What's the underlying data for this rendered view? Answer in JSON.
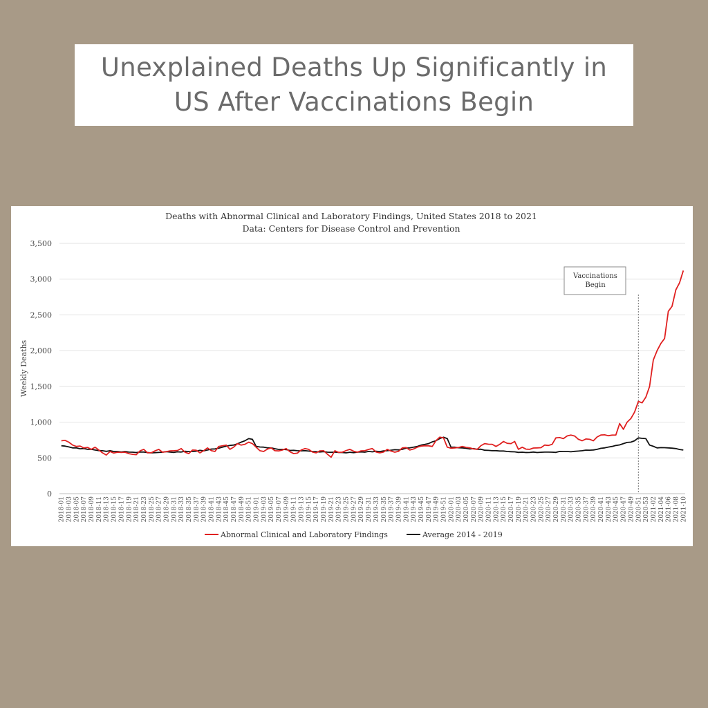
{
  "headline": "Unexplained Deaths Up Significantly in US After Vaccinations Begin",
  "chart_data": {
    "type": "line",
    "title": "Deaths with Abnormal Clinical and Laboratory Findings, United States 2018 to 2021",
    "subtitle": "Data: Centers for Disease Control and Prevention",
    "xlabel": "",
    "ylabel": "Weekly Deaths",
    "ylim": [
      0,
      3500
    ],
    "yticks": [
      0,
      500,
      1000,
      1500,
      2000,
      2500,
      3000,
      3500
    ],
    "ytick_labels": [
      "0",
      "500",
      "1,000",
      "1,500",
      "2,000",
      "2,500",
      "3,000",
      "3,500"
    ],
    "grid": true,
    "legend_position": "bottom",
    "colors": {
      "red": "#e02020",
      "black": "#111111",
      "grid": "#e3e3e3"
    },
    "annotation": {
      "text": [
        "Vaccinations",
        "Begin"
      ],
      "x_week": "2020-51"
    },
    "series": [
      {
        "name": "Abnormal Clinical and Laboratory Findings",
        "color": "#e02020",
        "anchors": [
          [
            "2018-01",
            740
          ],
          [
            "2018-02",
            745
          ],
          [
            "2018-03",
            720
          ],
          [
            "2018-04",
            680
          ],
          [
            "2018-05",
            660
          ],
          [
            "2018-07",
            640
          ],
          [
            "2018-09",
            620
          ],
          [
            "2018-10",
            650
          ],
          [
            "2018-11",
            610
          ],
          [
            "2018-12",
            570
          ],
          [
            "2018-13",
            540
          ],
          [
            "2018-14",
            590
          ],
          [
            "2018-16",
            580
          ],
          [
            "2018-18",
            580
          ],
          [
            "2018-19",
            560
          ],
          [
            "2018-20",
            550
          ],
          [
            "2018-21",
            545
          ],
          [
            "2018-23",
            620
          ],
          [
            "2018-24",
            570
          ],
          [
            "2018-27",
            620
          ],
          [
            "2018-28",
            580
          ],
          [
            "2018-31",
            600
          ],
          [
            "2018-33",
            630
          ],
          [
            "2018-35",
            560
          ],
          [
            "2018-36",
            610
          ],
          [
            "2018-38",
            570
          ],
          [
            "2018-40",
            640
          ],
          [
            "2018-42",
            590
          ],
          [
            "2018-43",
            660
          ],
          [
            "2018-45",
            680
          ],
          [
            "2018-46",
            620
          ],
          [
            "2018-48",
            700
          ],
          [
            "2018-50",
            690
          ],
          [
            "2018-51",
            720
          ],
          [
            "2018-52",
            700
          ],
          [
            "2019-01",
            650
          ],
          [
            "2019-02",
            600
          ],
          [
            "2019-03",
            590
          ],
          [
            "2019-05",
            640
          ],
          [
            "2019-06",
            600
          ],
          [
            "2019-08",
            610
          ],
          [
            "2019-09",
            630
          ],
          [
            "2019-11",
            560
          ],
          [
            "2019-13",
            610
          ],
          [
            "2019-15",
            620
          ],
          [
            "2019-17",
            570
          ],
          [
            "2019-19",
            600
          ],
          [
            "2019-21",
            510
          ],
          [
            "2019-22",
            600
          ],
          [
            "2019-24",
            580
          ],
          [
            "2019-26",
            620
          ],
          [
            "2019-28",
            580
          ],
          [
            "2019-30",
            600
          ],
          [
            "2019-32",
            630
          ],
          [
            "2019-34",
            570
          ],
          [
            "2019-36",
            620
          ],
          [
            "2019-38",
            580
          ],
          [
            "2019-40",
            640
          ],
          [
            "2019-42",
            610
          ],
          [
            "2019-44",
            650
          ],
          [
            "2019-46",
            670
          ],
          [
            "2019-48",
            660
          ],
          [
            "2019-50",
            790
          ],
          [
            "2019-51",
            780
          ],
          [
            "2019-52",
            650
          ],
          [
            "2020-02",
            640
          ],
          [
            "2020-04",
            660
          ],
          [
            "2020-06",
            640
          ],
          [
            "2020-08",
            620
          ],
          [
            "2020-10",
            700
          ],
          [
            "2020-12",
            690
          ],
          [
            "2020-13",
            660
          ],
          [
            "2020-15",
            730
          ],
          [
            "2020-17",
            700
          ],
          [
            "2020-18",
            730
          ],
          [
            "2020-19",
            620
          ],
          [
            "2020-20",
            650
          ],
          [
            "2020-22",
            620
          ],
          [
            "2020-24",
            640
          ],
          [
            "2020-26",
            680
          ],
          [
            "2020-28",
            690
          ],
          [
            "2020-29",
            780
          ],
          [
            "2020-31",
            770
          ],
          [
            "2020-33",
            820
          ],
          [
            "2020-35",
            760
          ],
          [
            "2020-36",
            740
          ],
          [
            "2020-38",
            760
          ],
          [
            "2020-39",
            740
          ],
          [
            "2020-41",
            820
          ],
          [
            "2020-43",
            810
          ],
          [
            "2020-45",
            820
          ],
          [
            "2020-46",
            980
          ],
          [
            "2020-47",
            900
          ],
          [
            "2020-48",
            1000
          ],
          [
            "2020-49",
            1050
          ],
          [
            "2020-50",
            1140
          ],
          [
            "2020-51",
            1290
          ],
          [
            "2020-52",
            1270
          ],
          [
            "2020-53",
            1350
          ],
          [
            "2021-01",
            1500
          ],
          [
            "2021-02",
            1870
          ],
          [
            "2021-03",
            2000
          ],
          [
            "2021-04",
            2100
          ],
          [
            "2021-05",
            2170
          ],
          [
            "2021-06",
            2550
          ],
          [
            "2021-07",
            2620
          ],
          [
            "2021-08",
            2850
          ],
          [
            "2021-09",
            2950
          ],
          [
            "2021-10",
            3120
          ]
        ]
      },
      {
        "name": "Average 2014 - 2019",
        "color": "#111111",
        "anchors": [
          [
            "2018-01",
            670
          ],
          [
            "2018-04",
            640
          ],
          [
            "2018-08",
            620
          ],
          [
            "2018-12",
            600
          ],
          [
            "2018-16",
            590
          ],
          [
            "2018-20",
            580
          ],
          [
            "2018-24",
            575
          ],
          [
            "2018-28",
            580
          ],
          [
            "2018-32",
            585
          ],
          [
            "2018-36",
            590
          ],
          [
            "2018-40",
            610
          ],
          [
            "2018-44",
            650
          ],
          [
            "2018-47",
            680
          ],
          [
            "2018-49",
            720
          ],
          [
            "2018-51",
            770
          ],
          [
            "2018-52",
            760
          ],
          [
            "2019-01",
            660
          ],
          [
            "2019-04",
            640
          ],
          [
            "2019-08",
            620
          ],
          [
            "2019-12",
            600
          ],
          [
            "2019-16",
            590
          ],
          [
            "2019-20",
            580
          ],
          [
            "2019-24",
            575
          ],
          [
            "2019-28",
            580
          ],
          [
            "2019-32",
            585
          ],
          [
            "2019-36",
            600
          ],
          [
            "2019-40",
            620
          ],
          [
            "2019-44",
            660
          ],
          [
            "2019-47",
            700
          ],
          [
            "2019-49",
            740
          ],
          [
            "2019-51",
            790
          ],
          [
            "2019-52",
            770
          ],
          [
            "2020-01",
            650
          ],
          [
            "2020-04",
            640
          ],
          [
            "2020-08",
            620
          ],
          [
            "2020-12",
            600
          ],
          [
            "2020-16",
            590
          ],
          [
            "2020-20",
            580
          ],
          [
            "2020-24",
            575
          ],
          [
            "2020-28",
            580
          ],
          [
            "2020-32",
            590
          ],
          [
            "2020-36",
            600
          ],
          [
            "2020-40",
            620
          ],
          [
            "2020-44",
            660
          ],
          [
            "2020-47",
            700
          ],
          [
            "2020-49",
            720
          ],
          [
            "2020-50",
            740
          ],
          [
            "2020-51",
            780
          ],
          [
            "2020-53",
            770
          ],
          [
            "2021-01",
            680
          ],
          [
            "2021-03",
            640
          ],
          [
            "2021-06",
            640
          ],
          [
            "2021-08",
            630
          ],
          [
            "2021-10",
            610
          ]
        ]
      }
    ]
  }
}
